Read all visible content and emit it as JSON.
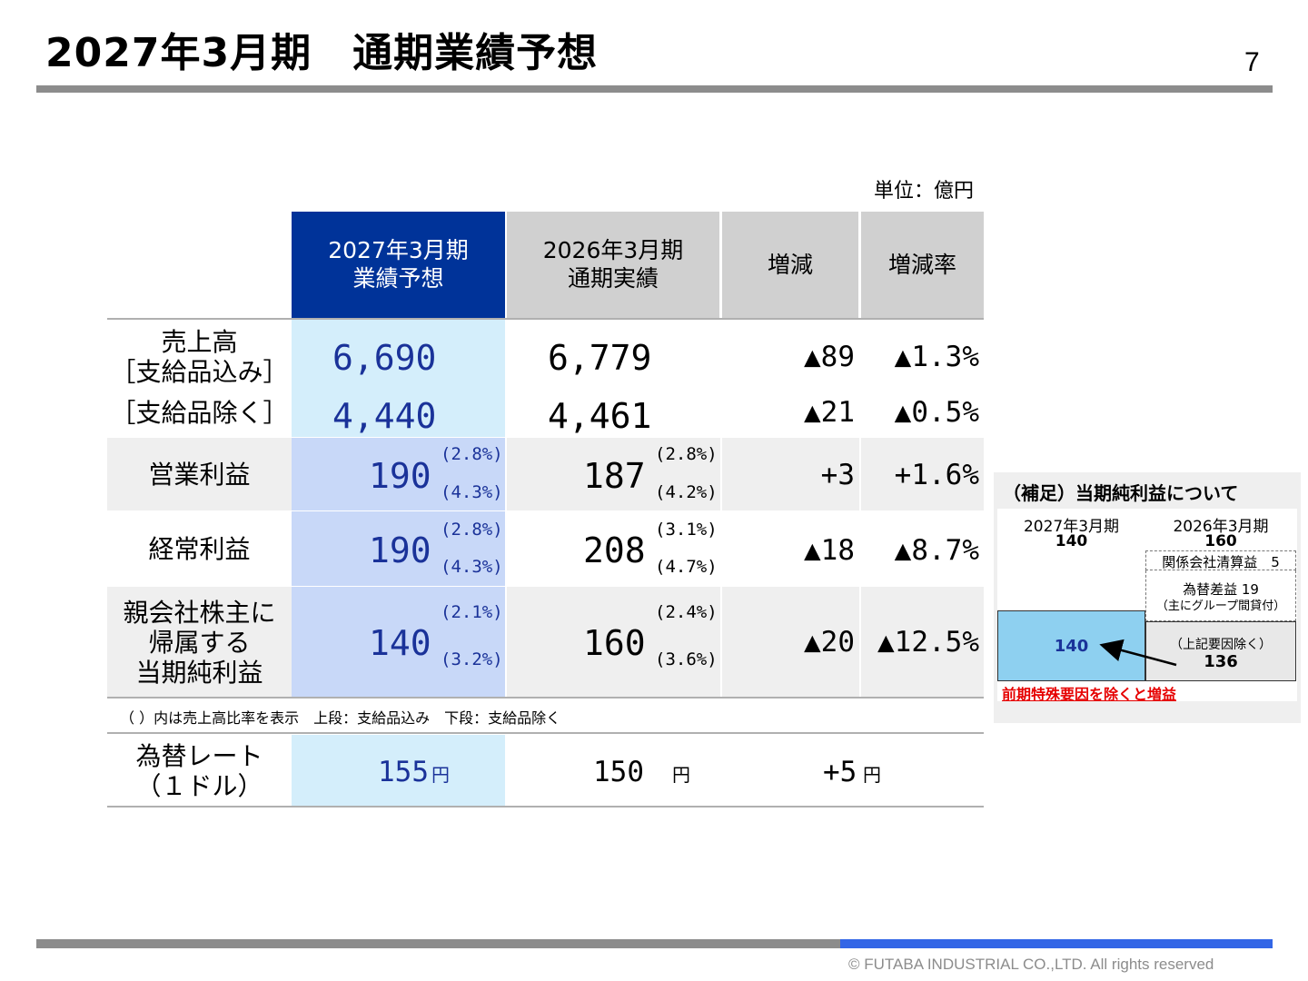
{
  "header": {
    "title": "2027年3月期　通期業績予想",
    "page_number": "7"
  },
  "unit_label": "単位：億円",
  "table": {
    "columns": {
      "forecast": {
        "line1": "2027年3月期",
        "line2": "業績予想"
      },
      "actual": {
        "line1": "2026年3月期",
        "line2": "通期実績"
      },
      "change": "増減",
      "change_rate": "増減率"
    },
    "sales": {
      "label1": "売上高",
      "label2": "［支給品込み］",
      "label3": "［支給品除く］",
      "incl": {
        "forecast": "6,690",
        "actual": "6,779",
        "change": "▲89",
        "rate": "▲1.3%"
      },
      "excl": {
        "forecast": "4,440",
        "actual": "4,461",
        "change": "▲21",
        "rate": "▲0.5%"
      }
    },
    "operating": {
      "label": "営業利益",
      "forecast": "190",
      "forecast_pct1": "(2.8%)",
      "forecast_pct2": "(4.3%)",
      "actual": "187",
      "actual_pct1": "(2.8%)",
      "actual_pct2": "(4.2%)",
      "change": "+3",
      "rate": "+1.6%"
    },
    "ordinary": {
      "label": "経常利益",
      "forecast": "190",
      "forecast_pct1": "(2.8%)",
      "forecast_pct2": "(4.3%)",
      "actual": "208",
      "actual_pct1": "(3.1%)",
      "actual_pct2": "(4.7%)",
      "change": "▲18",
      "rate": "▲8.7%"
    },
    "net": {
      "label1": "親会社株主に",
      "label2": "帰属する",
      "label3": "当期純利益",
      "forecast": "140",
      "forecast_pct1": "(2.1%)",
      "forecast_pct2": "(3.2%)",
      "actual": "160",
      "actual_pct1": "(2.4%)",
      "actual_pct2": "(3.6%)",
      "change": "▲20",
      "rate": "▲12.5%"
    },
    "note": "（ ）内は売上高比率を表示　上段：支給品込み　下段：支給品除く",
    "fx": {
      "label1": "為替レート",
      "label2": "（１ドル）",
      "forecast": "155",
      "actual": "150",
      "change": "+5",
      "unit": "円"
    }
  },
  "side_panel": {
    "title": "（補足）当期純利益について",
    "cur_period": "2027年3月期",
    "cur_value": "140",
    "prev_period": "2026年3月期",
    "prev_value": "160",
    "affiliate": "関係会社清算益　5",
    "fx_gain": "為替差益 19",
    "fx_gain_sub": "（主にグループ間貸付）",
    "bar_value": "140",
    "core_label": "（上記要因除く）",
    "core_value": "136",
    "note": "前期特殊要因を除くと増益"
  },
  "footer": {
    "copyright": "© FUTABA INDUSTRIAL CO.,LTD.   All rights reserved"
  },
  "colors": {
    "header_blue": "#003399",
    "accent_blue": "#3366e6",
    "number_blue": "#1a3299",
    "note_red": "#e60000"
  }
}
